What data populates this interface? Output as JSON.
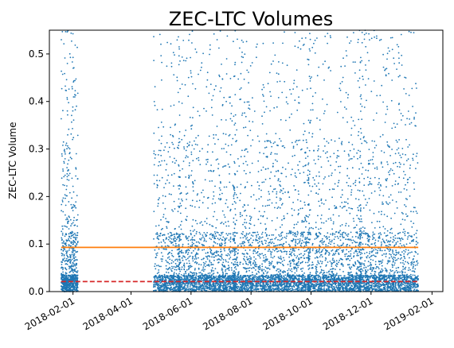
{
  "chart_data": {
    "type": "scatter",
    "title": "ZEC-LTC Volumes",
    "xlabel": "",
    "ylabel": "ZEC-LTC Volume",
    "x_axis": "date",
    "xlim": [
      "2018-01-08",
      "2019-02-12"
    ],
    "ylim": [
      0,
      0.55
    ],
    "grid": false,
    "legend": "none",
    "xticks": [
      "2018-02-01",
      "2018-04-01",
      "2018-06-01",
      "2018-08-01",
      "2018-10-01",
      "2018-12-01",
      "2019-02-01"
    ],
    "yticks": [
      0.0,
      0.1,
      0.2,
      0.3,
      0.4,
      0.5
    ],
    "ytick_labels": [
      "0.0",
      "0.1",
      "0.2",
      "0.3",
      "0.4",
      "0.5"
    ],
    "series": [
      {
        "kind": "scatter",
        "color": "#1f77b4",
        "marker_size_note": "tiny dots",
        "segments": [
          {
            "x_start": "2018-01-20",
            "x_end": "2018-02-06",
            "y_min": 0,
            "y_max": 0.55,
            "approx_points": 900
          },
          {
            "x_start": "2018-04-24",
            "x_end": "2019-01-18",
            "y_min": 0,
            "y_max": 0.55,
            "approx_points": 7000
          }
        ]
      },
      {
        "kind": "hline",
        "style": "solid",
        "color": "#ff7f0e",
        "y": 0.093,
        "x_start": "2018-01-20",
        "x_end": "2019-01-18"
      },
      {
        "kind": "hline",
        "style": "dashed",
        "color": "#d62728",
        "y": 0.021,
        "x_start": "2018-01-20",
        "x_end": "2019-01-18"
      }
    ]
  }
}
